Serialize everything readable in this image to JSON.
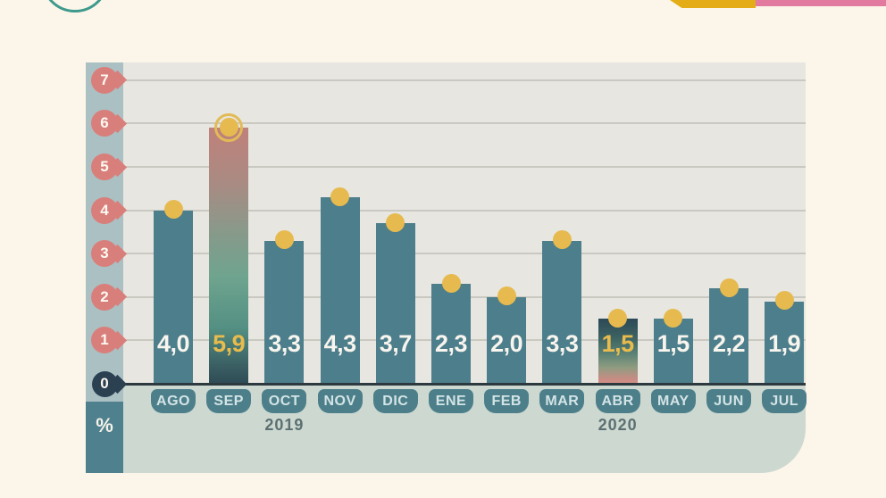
{
  "colors": {
    "background": "#fbf6e9",
    "plot_background": "#e7e6e0",
    "footer_panel": "#cdd9d0",
    "bar_teal": "#4d7e8b",
    "pin_salmon": "#d97f7b",
    "pin_zero_dark": "#2b4050",
    "marker_gold": "#e6ba4e",
    "value_gold": "#e8bb4e",
    "ribbon_yellow": "#e4ad18",
    "ribbon_pink": "#e27aa0",
    "logo_arc_teal": "#3f9a8d"
  },
  "chart_data": {
    "type": "bar",
    "unit_label": "%",
    "ylabel": "%",
    "ylim": [
      0,
      7
    ],
    "y_ticks": [
      0,
      1,
      2,
      3,
      4,
      5,
      6,
      7
    ],
    "grid": true,
    "categories": [
      "AGO",
      "SEP",
      "OCT",
      "NOV",
      "DIC",
      "ENE",
      "FEB",
      "MAR",
      "ABR",
      "MAY",
      "JUN",
      "JUL"
    ],
    "values": [
      4.0,
      5.9,
      3.3,
      4.3,
      3.7,
      2.3,
      2.0,
      3.3,
      1.5,
      1.5,
      2.2,
      1.9
    ],
    "bars": [
      {
        "month": "AGO",
        "value": 4.0,
        "label": "4,0",
        "style": "solid",
        "label_color": "white",
        "marker": "dot"
      },
      {
        "month": "SEP",
        "value": 5.9,
        "label": "5,9",
        "style": "gradient-salmon-top",
        "label_color": "gold",
        "marker": "dot-ring"
      },
      {
        "month": "OCT",
        "value": 3.3,
        "label": "3,3",
        "style": "solid",
        "label_color": "white",
        "marker": "dot"
      },
      {
        "month": "NOV",
        "value": 4.3,
        "label": "4,3",
        "style": "solid",
        "label_color": "white",
        "marker": "dot"
      },
      {
        "month": "DIC",
        "value": 3.7,
        "label": "3,7",
        "style": "solid",
        "label_color": "white",
        "marker": "dot"
      },
      {
        "month": "ENE",
        "value": 2.3,
        "label": "2,3",
        "style": "solid",
        "label_color": "white",
        "marker": "dot"
      },
      {
        "month": "FEB",
        "value": 2.0,
        "label": "2,0",
        "style": "solid",
        "label_color": "white",
        "marker": "dot"
      },
      {
        "month": "MAR",
        "value": 3.3,
        "label": "3,3",
        "style": "solid",
        "label_color": "white",
        "marker": "dot"
      },
      {
        "month": "ABR",
        "value": 1.5,
        "label": "1,5",
        "style": "gradient-salmon-bottom",
        "label_color": "gold",
        "marker": "dot"
      },
      {
        "month": "MAY",
        "value": 1.5,
        "label": "1,5",
        "style": "solid",
        "label_color": "white",
        "marker": "dot"
      },
      {
        "month": "JUN",
        "value": 2.2,
        "label": "2,2",
        "style": "solid",
        "label_color": "white",
        "marker": "dot"
      },
      {
        "month": "JUL",
        "value": 1.9,
        "label": "1,9",
        "style": "solid",
        "label_color": "white",
        "marker": "dot"
      }
    ],
    "year_labels": [
      {
        "text": "2019",
        "anchor_month_index": 2
      },
      {
        "text": "2020",
        "anchor_month_index": 8
      }
    ],
    "legend": null,
    "title": ""
  }
}
